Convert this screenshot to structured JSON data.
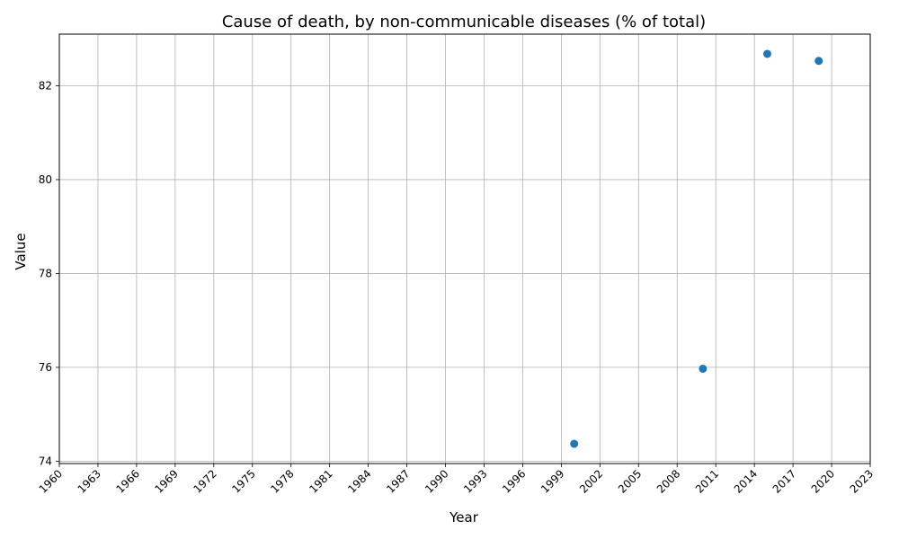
{
  "chart_data": {
    "type": "scatter",
    "title": "Cause of death, by non-communicable diseases (% of total)",
    "xlabel": "Year",
    "ylabel": "Value",
    "xlim": [
      1960,
      2023
    ],
    "ylim": [
      73.95,
      83.1
    ],
    "x_ticks": [
      1960,
      1963,
      1966,
      1969,
      1972,
      1975,
      1978,
      1981,
      1984,
      1987,
      1990,
      1993,
      1996,
      1999,
      2002,
      2005,
      2008,
      2011,
      2014,
      2017,
      2020,
      2023
    ],
    "y_ticks": [
      74,
      76,
      78,
      80,
      82
    ],
    "grid": true,
    "series": [
      {
        "color": "#1f77b4",
        "points": [
          {
            "x": 2000,
            "y": 74.37
          },
          {
            "x": 2010,
            "y": 75.97
          },
          {
            "x": 2015,
            "y": 82.68
          },
          {
            "x": 2019,
            "y": 82.53
          }
        ]
      }
    ]
  }
}
